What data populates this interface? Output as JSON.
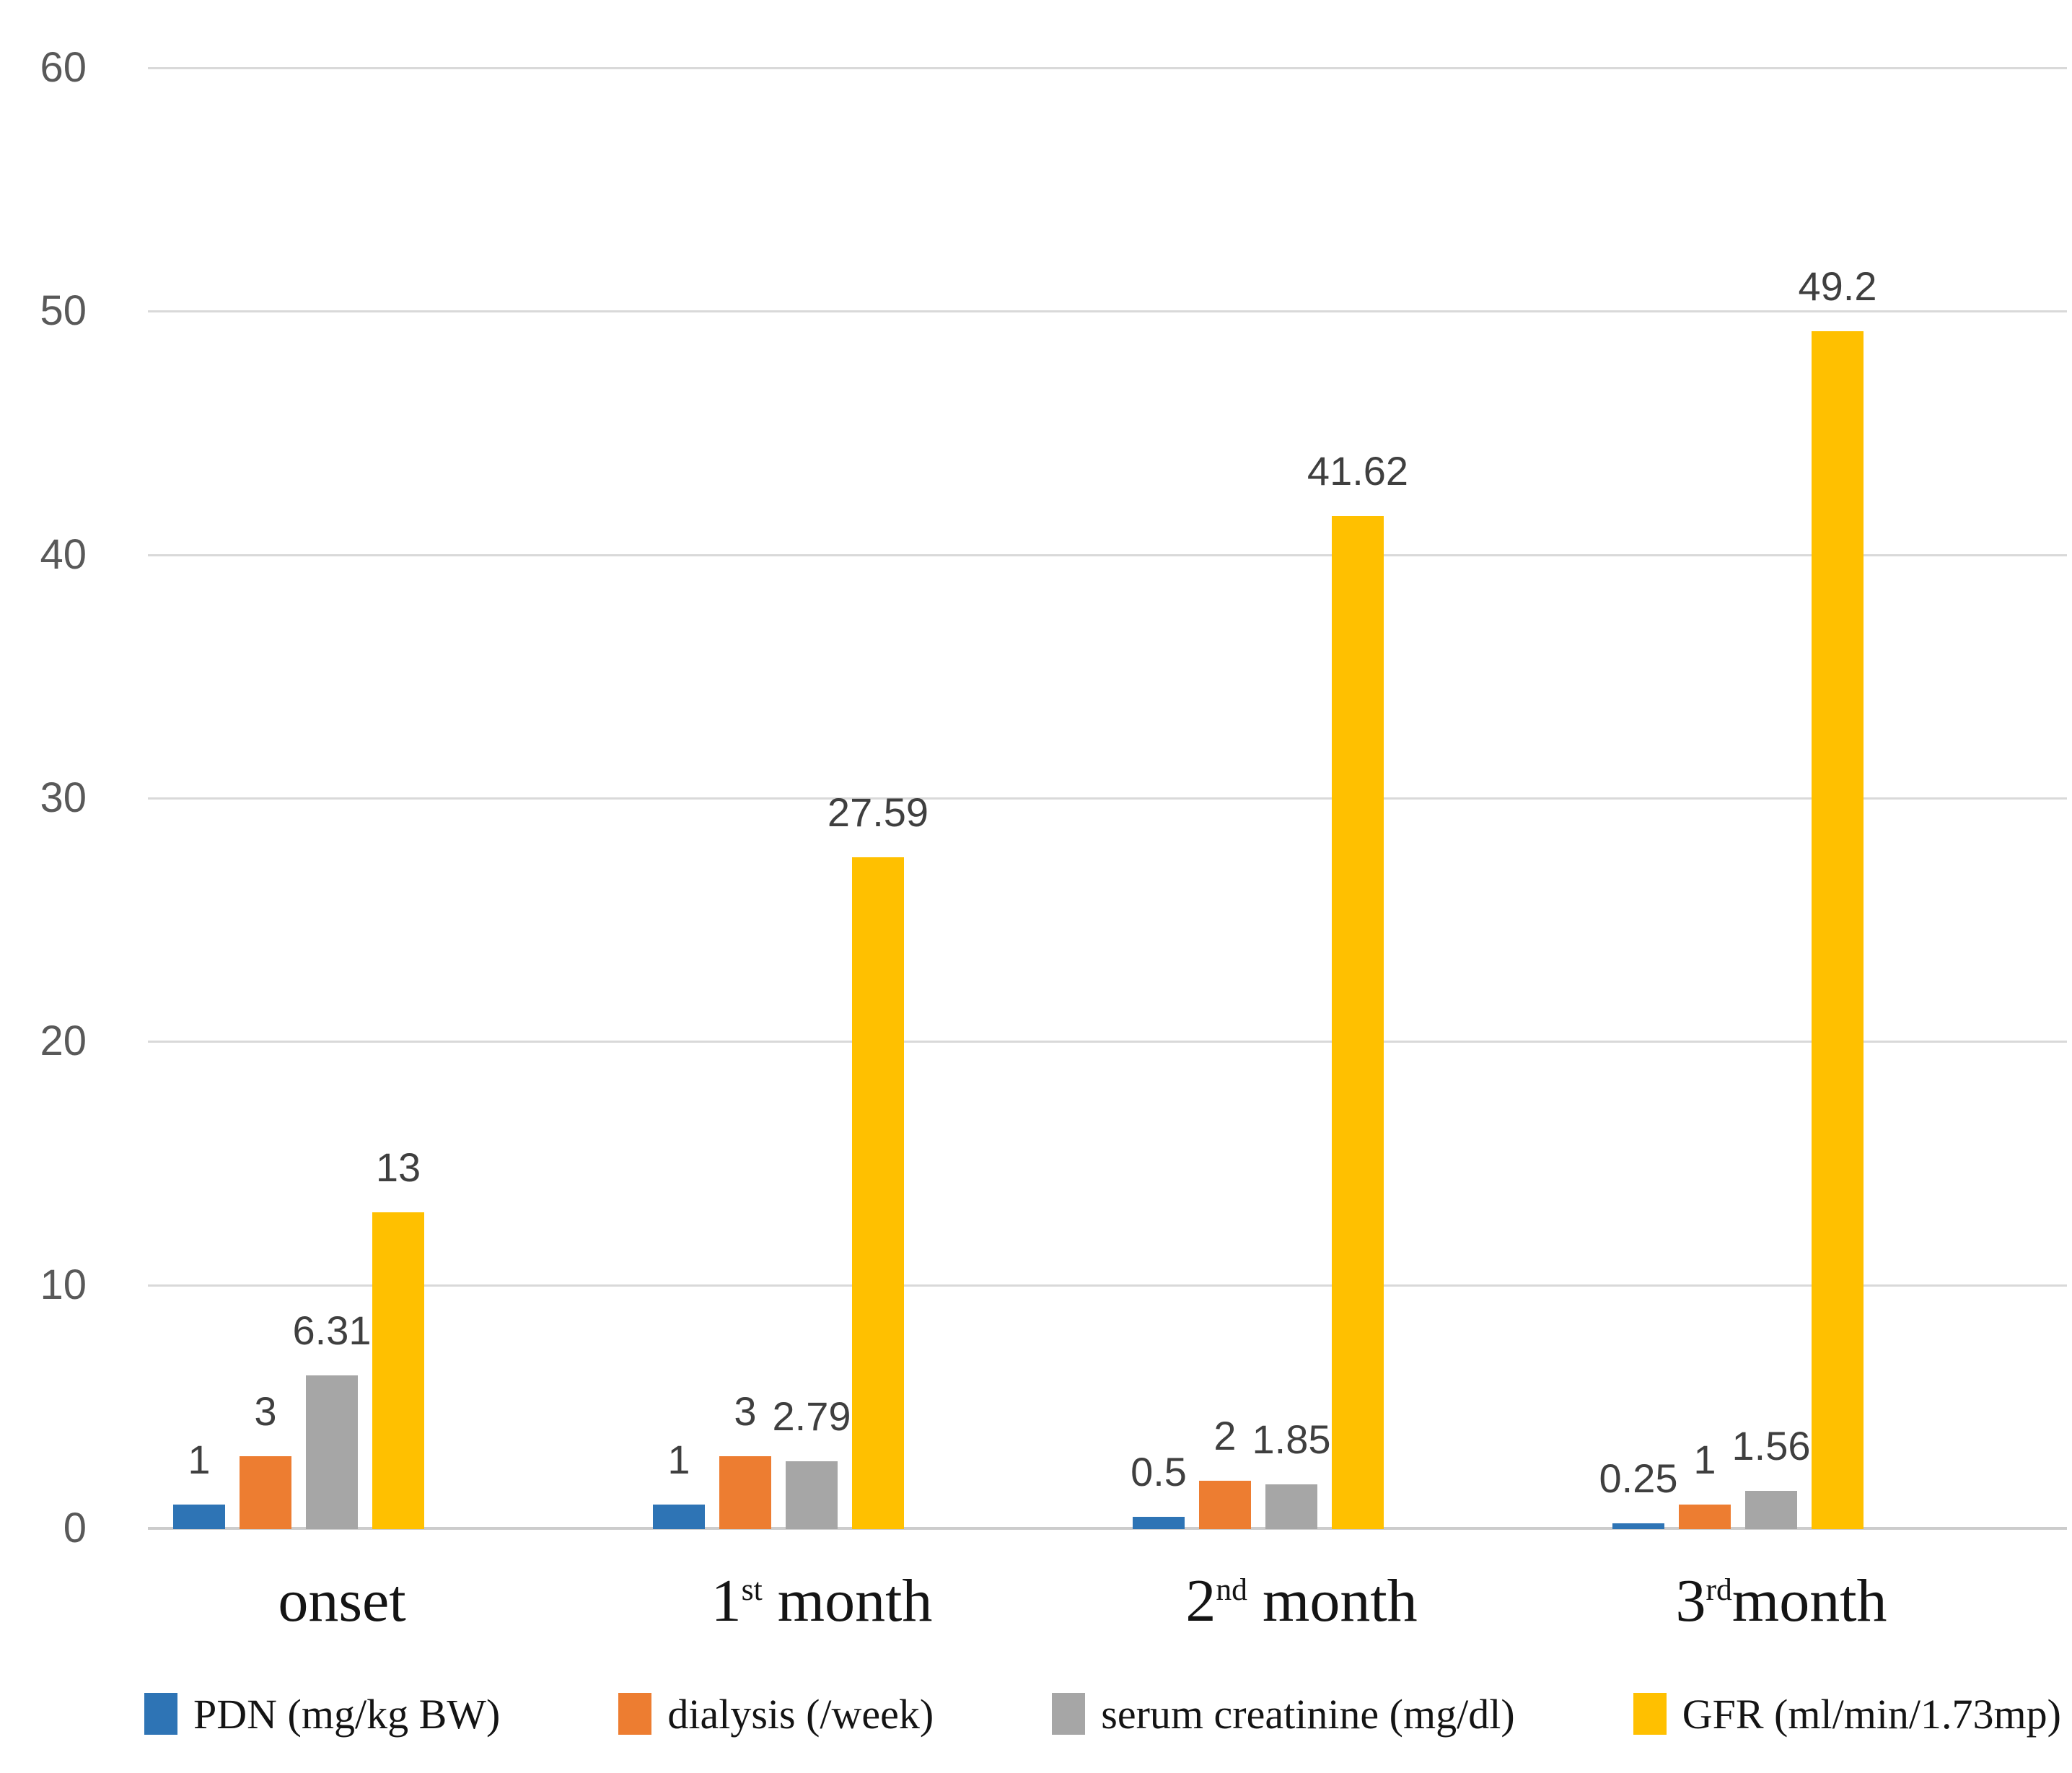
{
  "chart_data": {
    "type": "bar",
    "title": "",
    "xlabel": "",
    "ylabel": "",
    "categories": [
      "onset",
      "1st month",
      "2nd month",
      "3rd month"
    ],
    "categories_rich": [
      {
        "base": "onset",
        "sup": "",
        "rest": ""
      },
      {
        "base": "1",
        "sup": "st",
        "rest": " month"
      },
      {
        "base": "2",
        "sup": "nd",
        "rest": " month"
      },
      {
        "base": "3",
        "sup": "rd",
        "rest": "month"
      }
    ],
    "series": [
      {
        "name": "PDN (mg/kg BW)",
        "color": "#2E74B5",
        "values": [
          1,
          1,
          0.5,
          0.25
        ],
        "labels": [
          "1",
          "1",
          "0.5",
          "0.25"
        ]
      },
      {
        "name": "dialysis (/week)",
        "color": "#ED7D31",
        "values": [
          3,
          3,
          2,
          1
        ],
        "labels": [
          "3",
          "3",
          "2",
          "1"
        ]
      },
      {
        "name": "serum creatinine (mg/dl)",
        "color": "#A6A6A6",
        "values": [
          6.31,
          2.79,
          1.85,
          1.56
        ],
        "labels": [
          "6.31",
          "2.79",
          "1.85",
          "1.56"
        ]
      },
      {
        "name": "GFR (ml/min/1.73mp)",
        "color": "#FFC000",
        "values": [
          13,
          27.59,
          41.62,
          49.2
        ],
        "labels": [
          "13",
          "27.59",
          "41.62",
          "49.2"
        ]
      }
    ],
    "yticks": [
      0,
      10,
      20,
      30,
      40,
      50,
      60
    ],
    "ylim": [
      0,
      60
    ],
    "grid": true,
    "legend_position": "bottom",
    "colors": {
      "grid": "#D9D9D9",
      "baseline": "#CCCCCC",
      "tick_label": "#595959",
      "value_label": "#3F3F3F",
      "category_label": "#141414",
      "background": "#FFFFFF"
    }
  }
}
